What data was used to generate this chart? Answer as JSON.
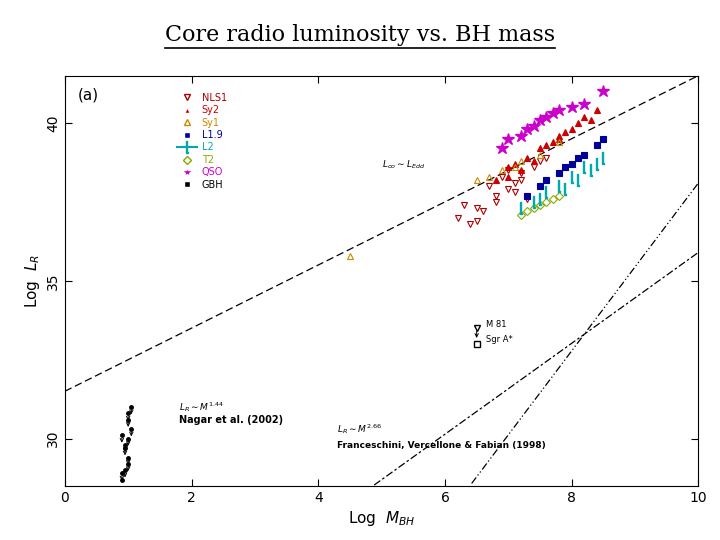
{
  "title": "Core radio luminosity vs. BH mass",
  "xlabel": "Log  $M_{BH}$",
  "ylabel": "Log  $L_R$",
  "xlim": [
    0,
    10
  ],
  "ylim": [
    28.5,
    41.5
  ],
  "ytick_vals": [
    30,
    35,
    40
  ],
  "ytick_labels": [
    "30",
    "35",
    "40"
  ],
  "xtick_vals": [
    0,
    2,
    4,
    6,
    8,
    10
  ],
  "xtick_labels": [
    "0",
    "2",
    "4",
    "6",
    "8",
    "10"
  ],
  "panel_label": "(a)",
  "nls1_color": "#aa0000",
  "sy2_color": "#cc0000",
  "sy1_color": "#cc8800",
  "l19_color": "#000099",
  "l2_color": "#00aaaa",
  "t2_color": "#88aa00",
  "qso_color": "#cc00cc",
  "gbh_color": "#000000",
  "nls1_points": [
    [
      6.5,
      37.3
    ],
    [
      6.7,
      38.0
    ],
    [
      7.0,
      38.5
    ],
    [
      7.1,
      37.8
    ],
    [
      6.2,
      37.0
    ],
    [
      6.8,
      37.5
    ],
    [
      7.2,
      38.2
    ],
    [
      7.5,
      38.8
    ],
    [
      6.9,
      38.3
    ],
    [
      7.3,
      37.6
    ],
    [
      6.4,
      36.8
    ],
    [
      7.4,
      38.6
    ],
    [
      6.6,
      37.2
    ],
    [
      7.0,
      37.9
    ],
    [
      6.3,
      37.4
    ],
    [
      7.1,
      38.1
    ],
    [
      6.8,
      37.7
    ],
    [
      7.6,
      38.9
    ],
    [
      6.5,
      36.9
    ],
    [
      7.2,
      38.4
    ]
  ],
  "sy2_points": [
    [
      7.0,
      38.6
    ],
    [
      7.5,
      39.2
    ],
    [
      7.8,
      39.5
    ],
    [
      8.0,
      39.8
    ],
    [
      7.3,
      38.9
    ],
    [
      7.6,
      39.3
    ],
    [
      8.2,
      40.2
    ],
    [
      7.1,
      38.7
    ],
    [
      7.9,
      39.7
    ],
    [
      8.1,
      40.0
    ],
    [
      6.8,
      38.2
    ],
    [
      7.4,
      38.8
    ],
    [
      7.7,
      39.4
    ],
    [
      8.3,
      40.1
    ],
    [
      7.2,
      38.5
    ],
    [
      8.4,
      40.4
    ],
    [
      7.0,
      38.3
    ],
    [
      7.8,
      39.6
    ]
  ],
  "sy1_points": [
    [
      6.5,
      38.2
    ],
    [
      6.9,
      38.5
    ],
    [
      7.2,
      38.8
    ],
    [
      7.5,
      39.0
    ],
    [
      7.8,
      39.4
    ],
    [
      6.7,
      38.3
    ],
    [
      7.1,
      38.6
    ],
    [
      4.5,
      35.8
    ]
  ],
  "l19_points": [
    [
      7.5,
      38.0
    ],
    [
      7.8,
      38.4
    ],
    [
      8.0,
      38.7
    ],
    [
      8.2,
      39.0
    ],
    [
      8.4,
      39.3
    ],
    [
      7.3,
      37.7
    ],
    [
      7.6,
      38.2
    ],
    [
      7.9,
      38.6
    ],
    [
      8.1,
      38.9
    ],
    [
      8.5,
      39.5
    ]
  ],
  "l2_points": [
    [
      7.4,
      37.5
    ],
    [
      7.6,
      37.8
    ],
    [
      7.8,
      38.0
    ],
    [
      8.0,
      38.3
    ],
    [
      8.2,
      38.6
    ],
    [
      7.2,
      37.3
    ],
    [
      7.9,
      37.9
    ],
    [
      8.1,
      38.2
    ],
    [
      8.3,
      38.5
    ],
    [
      8.4,
      38.7
    ],
    [
      8.5,
      38.9
    ],
    [
      7.5,
      37.6
    ]
  ],
  "t2_points": [
    [
      7.3,
      37.2
    ],
    [
      7.5,
      37.4
    ],
    [
      7.7,
      37.6
    ],
    [
      7.4,
      37.3
    ],
    [
      7.6,
      37.5
    ],
    [
      7.8,
      37.7
    ],
    [
      7.2,
      37.1
    ]
  ],
  "qso_points": [
    [
      7.0,
      39.5
    ],
    [
      7.3,
      39.8
    ],
    [
      7.5,
      40.1
    ],
    [
      7.7,
      40.3
    ],
    [
      8.0,
      40.5
    ],
    [
      7.2,
      39.6
    ],
    [
      7.4,
      39.9
    ],
    [
      7.6,
      40.2
    ],
    [
      7.8,
      40.4
    ],
    [
      8.5,
      41.0
    ],
    [
      8.2,
      40.6
    ],
    [
      6.9,
      39.2
    ]
  ],
  "gbh_points": [
    [
      1.0,
      30.6
    ],
    [
      1.05,
      30.3
    ],
    [
      1.0,
      30.0
    ],
    [
      0.95,
      29.7
    ],
    [
      1.0,
      29.4
    ],
    [
      0.95,
      29.0
    ],
    [
      0.9,
      28.7
    ],
    [
      1.05,
      31.0
    ],
    [
      1.0,
      30.8
    ],
    [
      0.9,
      30.1
    ],
    [
      0.95,
      29.8
    ],
    [
      1.0,
      29.2
    ],
    [
      0.9,
      28.9
    ]
  ],
  "m81_x": 6.5,
  "m81_y": 33.5,
  "sgrA_x": 6.5,
  "sgrA_y": 33.0,
  "edd_slope": 1.0,
  "edd_intercept": 31.5,
  "nagar_slope": 1.44,
  "nagar_intercept": 21.5,
  "franceschini_slope": 2.66,
  "franceschini_intercept": 11.5
}
